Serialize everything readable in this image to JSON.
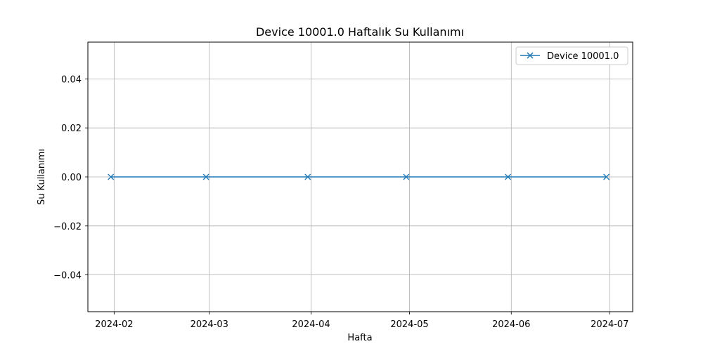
{
  "chart_data": {
    "type": "line",
    "title": "Device 10001.0 Haftalık Su Kullanımı",
    "xlabel": "Hafta",
    "ylabel": "Su Kullanımı",
    "x_ticks": [
      "2024-02",
      "2024-03",
      "2024-04",
      "2024-05",
      "2024-06",
      "2024-07"
    ],
    "y_ticks": [
      "0.04",
      "0.02",
      "0.00",
      "−0.02",
      "−0.04"
    ],
    "y_tick_values": [
      0.04,
      0.02,
      0.0,
      -0.02,
      -0.04
    ],
    "ylim": [
      -0.055,
      0.055
    ],
    "xlim": [
      "2024-01-24",
      "2024-07-08"
    ],
    "grid": true,
    "legend_position": "top-right",
    "series": [
      {
        "name": "Device 10001.0",
        "color": "#1f77b4",
        "marker": "x",
        "x": [
          "2024-01-31",
          "2024-02-29",
          "2024-03-31",
          "2024-04-30",
          "2024-05-31",
          "2024-06-30"
        ],
        "values": [
          0,
          0,
          0,
          0,
          0,
          0
        ]
      }
    ]
  }
}
